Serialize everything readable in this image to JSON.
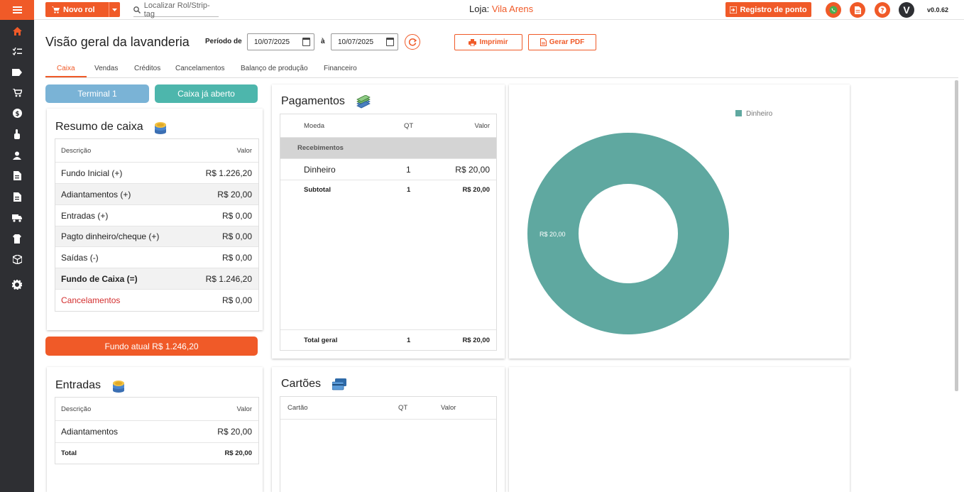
{
  "topbar": {
    "new_rol_label": "Novo rol",
    "search_placeholder": "Localizar Rol/Strip-tag",
    "loja_label": "Loja:",
    "loja_name": "Vila Arens",
    "registro_label": "Registro de ponto",
    "avatar_letter": "V",
    "version": "v0.0.62"
  },
  "page": {
    "title": "Visão geral da lavanderia",
    "periodo_label": "Período de",
    "date_from": "10/07/2025",
    "date_sep": "à",
    "date_to": "10/07/2025",
    "print_label": "Imprimir",
    "pdf_label": "Gerar PDF"
  },
  "tabs": [
    "Caixa",
    "Vendas",
    "Créditos",
    "Cancelamentos",
    "Balanço de produção",
    "Financeiro"
  ],
  "terminal_label": "Terminal 1",
  "caixa_status": "Caixa já aberto",
  "resumo": {
    "title": "Resumo de caixa",
    "col_desc": "Descrição",
    "col_valor": "Valor",
    "rows": [
      {
        "desc": "Fundo Inicial (+)",
        "valor": "R$ 1.226,20"
      },
      {
        "desc": "Adiantamentos (+)",
        "valor": "R$ 20,00"
      },
      {
        "desc": "Entradas (+)",
        "valor": "R$ 0,00"
      },
      {
        "desc": "Pagto dinheiro/cheque (+)",
        "valor": "R$ 0,00"
      },
      {
        "desc": "Saídas (-)",
        "valor": "R$ 0,00"
      },
      {
        "desc": "Fundo de Caixa (=)",
        "valor": "R$ 1.246,20"
      },
      {
        "desc": "Cancelamentos",
        "valor": "R$ 0,00"
      }
    ]
  },
  "fundo_atual": "Fundo atual R$ 1.246,20",
  "entradas": {
    "title": "Entradas",
    "col_desc": "Descrição",
    "col_valor": "Valor",
    "row_desc": "Adiantamentos",
    "row_valor": "R$ 20,00",
    "total_label": "Total",
    "total_valor": "R$ 20,00"
  },
  "pagamentos": {
    "title": "Pagamentos",
    "col_moeda": "Moeda",
    "col_qt": "QT",
    "col_valor": "Valor",
    "group": "Recebimentos",
    "row_moeda": "Dinheiro",
    "row_qt": "1",
    "row_valor": "R$ 20,00",
    "subtotal_label": "Subtotal",
    "subtotal_qt": "1",
    "subtotal_valor": "R$ 20,00",
    "total_label": "Total geral",
    "total_qt": "1",
    "total_valor": "R$ 20,00"
  },
  "cartoes": {
    "title": "Cartões",
    "col_cartao": "Cartão",
    "col_qt": "QT",
    "col_valor": "Valor"
  },
  "chart_data": {
    "type": "pie",
    "donut": true,
    "categories": [
      "Dinheiro"
    ],
    "values": [
      20.0
    ],
    "slice_labels": [
      "R$ 20,00"
    ],
    "legend": [
      "Dinheiro"
    ],
    "legend_position": "top-right",
    "colors": [
      "#5fa8a0"
    ]
  },
  "colors": {
    "accent": "#f05a28",
    "terminal": "#7ab3d6",
    "caixa_aberto": "#4db6ac",
    "sidebar": "#2e2f33"
  }
}
